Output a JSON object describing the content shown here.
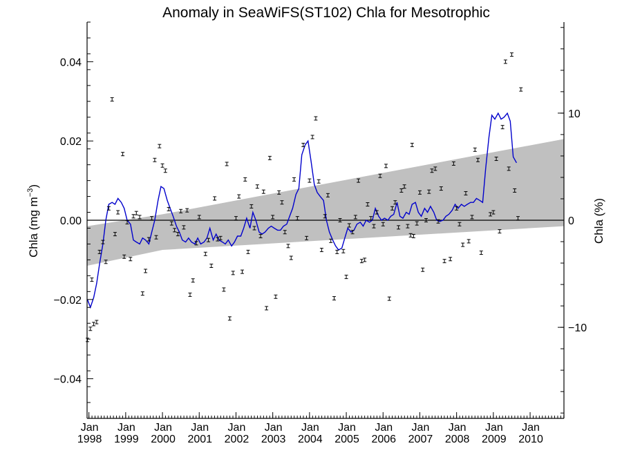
{
  "chart_data": {
    "type": "scatter",
    "title": "Anomaly in SeaWiFS(ST102) Chla for Mesotrophic",
    "ylabel": "Chla (mg m",
    "ylabel_superscript": "−3",
    "ylabel_close": ")",
    "y2label": "Chla (%)",
    "xlim": [
      1997.95,
      2010.92
    ],
    "ylim": [
      -0.05,
      0.05
    ],
    "y2lim": [
      -18.5,
      18.5
    ],
    "yticks": [
      {
        "value": 0.04,
        "label": "0.04"
      },
      {
        "value": 0.02,
        "label": "0.02"
      },
      {
        "value": 0.0,
        "label": "0.00"
      },
      {
        "value": -0.02,
        "label": "−0.02"
      },
      {
        "value": -0.04,
        "label": "−0.04"
      }
    ],
    "y2ticks": [
      {
        "value": 10,
        "label": "10"
      },
      {
        "value": 0,
        "label": "0"
      },
      {
        "value": -10,
        "label": "−10"
      }
    ],
    "xticks": [
      {
        "value": 1998.0,
        "month": "Jan",
        "year": "1998"
      },
      {
        "value": 1999.0,
        "month": "Jan",
        "year": "1999"
      },
      {
        "value": 2000.0,
        "month": "Jan",
        "year": "2000"
      },
      {
        "value": 2001.0,
        "month": "Jan",
        "year": "2001"
      },
      {
        "value": 2002.0,
        "month": "Jan",
        "year": "2002"
      },
      {
        "value": 2003.0,
        "month": "Jan",
        "year": "2003"
      },
      {
        "value": 2004.0,
        "month": "Jan",
        "year": "2004"
      },
      {
        "value": 2005.0,
        "month": "Jan",
        "year": "2005"
      },
      {
        "value": 2006.0,
        "month": "Jan",
        "year": "2006"
      },
      {
        "value": 2007.0,
        "month": "Jan",
        "year": "2007"
      },
      {
        "value": 2008.0,
        "month": "Jan",
        "year": "2008"
      },
      {
        "value": 2009.0,
        "month": "Jan",
        "year": "2009"
      },
      {
        "value": 2010.0,
        "month": "Jan",
        "year": "2010"
      }
    ],
    "grid": false,
    "zero_line": true,
    "colors": {
      "band": "#c0c0c0",
      "line": "#0000cc",
      "points": "#000000",
      "axes": "#000000"
    },
    "band": {
      "x": [
        1997.95,
        2000.0,
        2010.92
      ],
      "upper": [
        -0.0015,
        0.0015,
        0.0205
      ],
      "lower": [
        -0.0115,
        -0.0075,
        -0.0015
      ]
    },
    "points": [
      [
        1997.96,
        -0.0302
      ],
      [
        1998.04,
        -0.0274
      ],
      [
        1998.08,
        -0.015
      ],
      [
        1998.13,
        -0.0262
      ],
      [
        1998.21,
        -0.0257
      ],
      [
        1998.29,
        -0.008
      ],
      [
        1998.38,
        -0.0055
      ],
      [
        1998.46,
        -0.0105
      ],
      [
        1998.54,
        0.003
      ],
      [
        1998.63,
        0.0305
      ],
      [
        1998.71,
        -0.0035
      ],
      [
        1998.79,
        0.002
      ],
      [
        1998.92,
        0.0167
      ],
      [
        1998.96,
        -0.0092
      ],
      [
        1999.04,
        -0.0005
      ],
      [
        1999.13,
        -0.0098
      ],
      [
        1999.21,
        0.001
      ],
      [
        1999.29,
        0.0018
      ],
      [
        1999.38,
        0.0008
      ],
      [
        1999.46,
        -0.0185
      ],
      [
        1999.54,
        -0.0128
      ],
      [
        1999.63,
        -0.0048
      ],
      [
        1999.71,
        0.0005
      ],
      [
        1999.79,
        0.0152
      ],
      [
        1999.83,
        -0.0043
      ],
      [
        1999.92,
        0.0187
      ],
      [
        2000.0,
        0.0138
      ],
      [
        2000.08,
        0.0125
      ],
      [
        2000.17,
        0.0028
      ],
      [
        2000.25,
        -0.0008
      ],
      [
        2000.33,
        -0.0025
      ],
      [
        2000.42,
        -0.0035
      ],
      [
        2000.5,
        0.0023
      ],
      [
        2000.58,
        -0.0018
      ],
      [
        2000.67,
        0.0025
      ],
      [
        2000.75,
        -0.0188
      ],
      [
        2000.83,
        -0.0152
      ],
      [
        2000.92,
        -0.0058
      ],
      [
        2001.0,
        0.0008
      ],
      [
        2001.17,
        -0.0085
      ],
      [
        2001.25,
        -0.005
      ],
      [
        2001.33,
        -0.0115
      ],
      [
        2001.42,
        0.0055
      ],
      [
        2001.5,
        -0.0048
      ],
      [
        2001.58,
        -0.0045
      ],
      [
        2001.67,
        -0.0175
      ],
      [
        2001.75,
        0.0142
      ],
      [
        2001.83,
        -0.0248
      ],
      [
        2001.92,
        -0.0133
      ],
      [
        2002.0,
        0.0005
      ],
      [
        2002.08,
        0.006
      ],
      [
        2002.17,
        -0.013
      ],
      [
        2002.25,
        0.0103
      ],
      [
        2002.33,
        -0.008
      ],
      [
        2002.42,
        0.0035
      ],
      [
        2002.5,
        -0.002
      ],
      [
        2002.58,
        0.0085
      ],
      [
        2002.67,
        -0.004
      ],
      [
        2002.75,
        0.0072
      ],
      [
        2002.83,
        -0.0222
      ],
      [
        2002.92,
        0.0157
      ],
      [
        2003.0,
        0.0008
      ],
      [
        2003.08,
        -0.0193
      ],
      [
        2003.17,
        0.007
      ],
      [
        2003.25,
        0.0045
      ],
      [
        2003.33,
        -0.003
      ],
      [
        2003.42,
        -0.0065
      ],
      [
        2003.5,
        -0.0095
      ],
      [
        2003.58,
        0.0103
      ],
      [
        2003.67,
        0.0005
      ],
      [
        2003.83,
        0.019
      ],
      [
        2003.92,
        -0.0045
      ],
      [
        2004.0,
        0.01
      ],
      [
        2004.08,
        0.021
      ],
      [
        2004.17,
        0.0257
      ],
      [
        2004.25,
        0.0098
      ],
      [
        2004.33,
        -0.0075
      ],
      [
        2004.42,
        0.001
      ],
      [
        2004.5,
        0.0063
      ],
      [
        2004.58,
        -0.0052
      ],
      [
        2004.67,
        -0.0197
      ],
      [
        2004.75,
        -0.008
      ],
      [
        2004.83,
        0.0
      ],
      [
        2004.92,
        -0.0078
      ],
      [
        2005.0,
        -0.0143
      ],
      [
        2005.08,
        -0.0013
      ],
      [
        2005.17,
        -0.003
      ],
      [
        2005.25,
        0.0008
      ],
      [
        2005.33,
        0.01
      ],
      [
        2005.42,
        -0.0103
      ],
      [
        2005.5,
        -0.01
      ],
      [
        2005.58,
        0.004
      ],
      [
        2005.67,
        0.0005
      ],
      [
        2005.75,
        -0.0015
      ],
      [
        2005.83,
        0.002
      ],
      [
        2005.92,
        0.0112
      ],
      [
        2006.0,
        -0.001
      ],
      [
        2006.08,
        0.0137
      ],
      [
        2006.17,
        -0.0198
      ],
      [
        2006.25,
        0.003
      ],
      [
        2006.33,
        0.0045
      ],
      [
        2006.42,
        -0.0018
      ],
      [
        2006.5,
        0.0075
      ],
      [
        2006.58,
        0.0085
      ],
      [
        2006.67,
        -0.0015
      ],
      [
        2006.75,
        -0.0038
      ],
      [
        2006.79,
        0.019
      ],
      [
        2006.83,
        -0.004
      ],
      [
        2006.92,
        -0.0008
      ],
      [
        2007.0,
        0.007
      ],
      [
        2007.08,
        -0.0125
      ],
      [
        2007.17,
        0.0
      ],
      [
        2007.25,
        0.0072
      ],
      [
        2007.33,
        0.0125
      ],
      [
        2007.42,
        0.013
      ],
      [
        2007.5,
        -0.0003
      ],
      [
        2007.58,
        0.008
      ],
      [
        2007.67,
        -0.0103
      ],
      [
        2007.83,
        -0.0098
      ],
      [
        2007.92,
        0.0143
      ],
      [
        2008.0,
        0.003
      ],
      [
        2008.08,
        -0.001
      ],
      [
        2008.17,
        -0.0062
      ],
      [
        2008.25,
        0.0068
      ],
      [
        2008.33,
        -0.0053
      ],
      [
        2008.42,
        0.0008
      ],
      [
        2008.5,
        0.0178
      ],
      [
        2008.58,
        0.0152
      ],
      [
        2008.67,
        -0.0082
      ],
      [
        2008.92,
        0.0015
      ],
      [
        2009.0,
        0.002
      ],
      [
        2009.08,
        0.0155
      ],
      [
        2009.17,
        -0.0028
      ],
      [
        2009.25,
        0.0235
      ],
      [
        2009.33,
        0.04
      ],
      [
        2009.42,
        0.013
      ],
      [
        2009.5,
        0.0418
      ],
      [
        2009.58,
        0.0075
      ],
      [
        2009.67,
        0.0005
      ],
      [
        2009.75,
        0.033
      ]
    ],
    "line": [
      [
        1997.96,
        -0.02
      ],
      [
        1998.04,
        -0.022
      ],
      [
        1998.13,
        -0.0195
      ],
      [
        1998.21,
        -0.016
      ],
      [
        1998.29,
        -0.011
      ],
      [
        1998.38,
        -0.006
      ],
      [
        1998.46,
        0.0
      ],
      [
        1998.54,
        0.004
      ],
      [
        1998.63,
        0.0045
      ],
      [
        1998.71,
        0.004
      ],
      [
        1998.79,
        0.0055
      ],
      [
        1998.88,
        0.0045
      ],
      [
        1998.96,
        0.003
      ],
      [
        1999.04,
        0.0
      ],
      [
        1999.13,
        -0.001
      ],
      [
        1999.21,
        -0.005
      ],
      [
        1999.29,
        -0.0055
      ],
      [
        1999.38,
        -0.006
      ],
      [
        1999.46,
        -0.0045
      ],
      [
        1999.54,
        -0.005
      ],
      [
        1999.63,
        -0.006
      ],
      [
        1999.71,
        -0.003
      ],
      [
        1999.79,
        0.0
      ],
      [
        1999.88,
        0.005
      ],
      [
        1999.96,
        0.0085
      ],
      [
        2000.04,
        0.008
      ],
      [
        2000.13,
        0.005
      ],
      [
        2000.21,
        0.003
      ],
      [
        2000.29,
        0.001
      ],
      [
        2000.38,
        -0.0015
      ],
      [
        2000.46,
        -0.003
      ],
      [
        2000.54,
        -0.005
      ],
      [
        2000.63,
        -0.0055
      ],
      [
        2000.71,
        -0.0045
      ],
      [
        2000.79,
        -0.0055
      ],
      [
        2000.88,
        -0.006
      ],
      [
        2000.96,
        -0.0045
      ],
      [
        2001.04,
        -0.006
      ],
      [
        2001.13,
        -0.0055
      ],
      [
        2001.21,
        -0.0045
      ],
      [
        2001.29,
        -0.002
      ],
      [
        2001.38,
        -0.005
      ],
      [
        2001.46,
        -0.0035
      ],
      [
        2001.54,
        -0.005
      ],
      [
        2001.63,
        -0.0055
      ],
      [
        2001.71,
        -0.006
      ],
      [
        2001.79,
        -0.005
      ],
      [
        2001.88,
        -0.0065
      ],
      [
        2001.96,
        -0.0055
      ],
      [
        2002.04,
        -0.004
      ],
      [
        2002.13,
        -0.004
      ],
      [
        2002.21,
        -0.002
      ],
      [
        2002.29,
        0.0005
      ],
      [
        2002.38,
        -0.002
      ],
      [
        2002.46,
        0.002
      ],
      [
        2002.54,
        0.0
      ],
      [
        2002.63,
        -0.003
      ],
      [
        2002.71,
        -0.0035
      ],
      [
        2002.79,
        -0.003
      ],
      [
        2002.88,
        -0.002
      ],
      [
        2002.96,
        -0.0015
      ],
      [
        2003.04,
        -0.002
      ],
      [
        2003.13,
        -0.0025
      ],
      [
        2003.21,
        -0.0025
      ],
      [
        2003.29,
        -0.0015
      ],
      [
        2003.38,
        -0.001
      ],
      [
        2003.46,
        0.001
      ],
      [
        2003.54,
        0.003
      ],
      [
        2003.63,
        0.0065
      ],
      [
        2003.71,
        0.008
      ],
      [
        2003.79,
        0.0165
      ],
      [
        2003.88,
        0.019
      ],
      [
        2003.96,
        0.02
      ],
      [
        2004.04,
        0.015
      ],
      [
        2004.13,
        0.009
      ],
      [
        2004.21,
        0.007
      ],
      [
        2004.29,
        0.006
      ],
      [
        2004.38,
        0.005
      ],
      [
        2004.46,
        0.0
      ],
      [
        2004.54,
        -0.003
      ],
      [
        2004.63,
        -0.005
      ],
      [
        2004.71,
        -0.0065
      ],
      [
        2004.79,
        -0.0075
      ],
      [
        2004.88,
        -0.007
      ],
      [
        2004.96,
        -0.0045
      ],
      [
        2005.04,
        -0.002
      ],
      [
        2005.13,
        -0.003
      ],
      [
        2005.21,
        -0.0025
      ],
      [
        2005.29,
        -0.001
      ],
      [
        2005.38,
        -0.0005
      ],
      [
        2005.46,
        -0.0015
      ],
      [
        2005.54,
        0.0
      ],
      [
        2005.63,
        -0.0005
      ],
      [
        2005.71,
        0.0
      ],
      [
        2005.79,
        0.003
      ],
      [
        2005.88,
        0.001
      ],
      [
        2005.96,
        0.0
      ],
      [
        2006.04,
        0.0005
      ],
      [
        2006.13,
        0.0
      ],
      [
        2006.21,
        0.001
      ],
      [
        2006.29,
        0.0015
      ],
      [
        2006.38,
        0.0045
      ],
      [
        2006.46,
        0.001
      ],
      [
        2006.54,
        0.0005
      ],
      [
        2006.63,
        0.002
      ],
      [
        2006.71,
        0.0015
      ],
      [
        2006.79,
        0.004
      ],
      [
        2006.88,
        0.0045
      ],
      [
        2006.96,
        0.002
      ],
      [
        2007.04,
        0.001
      ],
      [
        2007.13,
        0.003
      ],
      [
        2007.21,
        0.002
      ],
      [
        2007.29,
        0.0035
      ],
      [
        2007.38,
        0.002
      ],
      [
        2007.46,
        0.0
      ],
      [
        2007.54,
        -0.0003
      ],
      [
        2007.63,
        0.0
      ],
      [
        2007.71,
        0.001
      ],
      [
        2007.79,
        0.0015
      ],
      [
        2007.88,
        0.0025
      ],
      [
        2007.96,
        0.004
      ],
      [
        2008.04,
        0.003
      ],
      [
        2008.13,
        0.004
      ],
      [
        2008.21,
        0.0035
      ],
      [
        2008.29,
        0.004
      ],
      [
        2008.38,
        0.0045
      ],
      [
        2008.46,
        0.0045
      ],
      [
        2008.54,
        0.0055
      ],
      [
        2008.63,
        0.005
      ],
      [
        2008.71,
        0.0045
      ],
      [
        2008.79,
        0.013
      ],
      [
        2008.88,
        0.021
      ],
      [
        2008.96,
        0.0265
      ],
      [
        2009.04,
        0.0255
      ],
      [
        2009.13,
        0.027
      ],
      [
        2009.21,
        0.0255
      ],
      [
        2009.29,
        0.026
      ],
      [
        2009.38,
        0.027
      ],
      [
        2009.46,
        0.025
      ],
      [
        2009.54,
        0.016
      ],
      [
        2009.63,
        0.0145
      ]
    ]
  }
}
